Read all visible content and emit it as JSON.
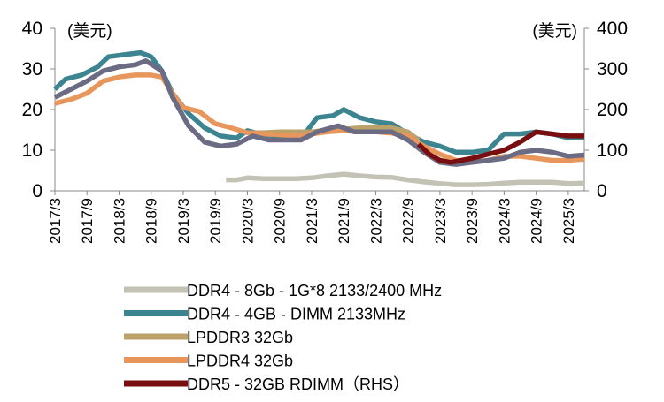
{
  "chart_data": {
    "type": "line",
    "left_axis": {
      "unit": "(美元)",
      "ylim": [
        0,
        40
      ],
      "ticks": [
        "0",
        "10",
        "20",
        "30",
        "40"
      ]
    },
    "right_axis": {
      "unit": "(美元)",
      "ylim": [
        0,
        400
      ],
      "ticks": [
        "0",
        "100",
        "200",
        "300",
        "400"
      ]
    },
    "x_range": [
      "2017-03",
      "2025-06"
    ],
    "x_ticks": [
      {
        "date": "2017-03",
        "label": "2017/3"
      },
      {
        "date": "2017-09",
        "label": "2017/9"
      },
      {
        "date": "2018-03",
        "label": "2018/3"
      },
      {
        "date": "2018-09",
        "label": "2018/9"
      },
      {
        "date": "2019-03",
        "label": "2019/3"
      },
      {
        "date": "2019-09",
        "label": "2019/9"
      },
      {
        "date": "2020-03",
        "label": "2020/3"
      },
      {
        "date": "2020-09",
        "label": "2020/9"
      },
      {
        "date": "2021-03",
        "label": "2021/3"
      },
      {
        "date": "2021-09",
        "label": "2021/9"
      },
      {
        "date": "2022-03",
        "label": "2022/3"
      },
      {
        "date": "2022-09",
        "label": "2022/9"
      },
      {
        "date": "2023-03",
        "label": "2023/3"
      },
      {
        "date": "2023-09",
        "label": "2023/9"
      },
      {
        "date": "2024-03",
        "label": "2024/3"
      },
      {
        "date": "2024-09",
        "label": "2024/9"
      },
      {
        "date": "2025-03",
        "label": "2025/3"
      }
    ],
    "series": [
      {
        "name": "DDR4 - 8Gb - 1G*8 2133/2400 MHz",
        "axis": "left",
        "color": "#c3c3b5",
        "points": [
          [
            "2019-11",
            2.7
          ],
          [
            "2020-01",
            2.7
          ],
          [
            "2020-03",
            3.2
          ],
          [
            "2020-06",
            3.0
          ],
          [
            "2020-09",
            3.0
          ],
          [
            "2020-12",
            3.0
          ],
          [
            "2021-03",
            3.2
          ],
          [
            "2021-06",
            3.7
          ],
          [
            "2021-09",
            4.1
          ],
          [
            "2021-12",
            3.7
          ],
          [
            "2022-03",
            3.4
          ],
          [
            "2022-06",
            3.3
          ],
          [
            "2022-09",
            2.7
          ],
          [
            "2022-12",
            2.2
          ],
          [
            "2023-03",
            1.8
          ],
          [
            "2023-06",
            1.5
          ],
          [
            "2023-09",
            1.5
          ],
          [
            "2023-12",
            1.6
          ],
          [
            "2024-03",
            1.9
          ],
          [
            "2024-06",
            2.1
          ],
          [
            "2024-09",
            2.1
          ],
          [
            "2024-12",
            2.1
          ],
          [
            "2025-03",
            1.8
          ],
          [
            "2025-06",
            1.9
          ]
        ]
      },
      {
        "name": "DDR4 - 4GB - DIMM 2133MHz",
        "axis": "left",
        "color": "#3c8490",
        "points": [
          [
            "2017-03",
            25.0
          ],
          [
            "2017-05",
            27.5
          ],
          [
            "2017-08",
            28.5
          ],
          [
            "2017-11",
            30.5
          ],
          [
            "2018-01",
            33.0
          ],
          [
            "2018-04",
            33.5
          ],
          [
            "2018-07",
            34.0
          ],
          [
            "2018-09",
            33.0
          ],
          [
            "2018-11",
            29.5
          ],
          [
            "2019-01",
            24.0
          ],
          [
            "2019-04",
            19.0
          ],
          [
            "2019-07",
            15.5
          ],
          [
            "2019-10",
            13.5
          ],
          [
            "2020-01",
            13.0
          ],
          [
            "2020-03",
            14.8
          ],
          [
            "2020-06",
            13.8
          ],
          [
            "2020-09",
            13.5
          ],
          [
            "2020-12",
            13.5
          ],
          [
            "2021-02",
            14.5
          ],
          [
            "2021-04",
            18.0
          ],
          [
            "2021-07",
            18.5
          ],
          [
            "2021-09",
            20.0
          ],
          [
            "2021-12",
            18.0
          ],
          [
            "2022-03",
            17.0
          ],
          [
            "2022-06",
            16.5
          ],
          [
            "2022-09",
            14.0
          ],
          [
            "2022-12",
            12.0
          ],
          [
            "2023-03",
            11.0
          ],
          [
            "2023-06",
            9.5
          ],
          [
            "2023-09",
            9.5
          ],
          [
            "2023-12",
            10.0
          ],
          [
            "2024-03",
            14.0
          ],
          [
            "2024-06",
            14.0
          ],
          [
            "2024-09",
            14.5
          ],
          [
            "2024-12",
            14.0
          ],
          [
            "2025-03",
            13.0
          ],
          [
            "2025-06",
            13.2
          ]
        ]
      },
      {
        "name": "LPDDR3 32Gb",
        "axis": "left",
        "color": "#bba16a",
        "points": [
          [
            "2020-03",
            14.3
          ],
          [
            "2020-06",
            14.3
          ],
          [
            "2020-09",
            14.5
          ],
          [
            "2020-12",
            14.5
          ],
          [
            "2021-03",
            14.5
          ],
          [
            "2021-06",
            15.0
          ],
          [
            "2021-09",
            15.2
          ],
          [
            "2021-12",
            15.5
          ],
          [
            "2022-03",
            15.5
          ],
          [
            "2022-06",
            15.5
          ],
          [
            "2022-09",
            14.5
          ],
          [
            "2022-11",
            12.5
          ]
        ]
      },
      {
        "name": "LPDDR4 32Gb",
        "axis": "left",
        "color": "#e8965c",
        "points": [
          [
            "2017-03",
            21.5
          ],
          [
            "2017-06",
            22.5
          ],
          [
            "2017-09",
            24.0
          ],
          [
            "2017-12",
            27.0
          ],
          [
            "2018-03",
            28.0
          ],
          [
            "2018-06",
            28.5
          ],
          [
            "2018-09",
            28.5
          ],
          [
            "2018-11",
            28.0
          ],
          [
            "2019-01",
            24.0
          ],
          [
            "2019-03",
            20.5
          ],
          [
            "2019-06",
            19.5
          ],
          [
            "2019-09",
            16.5
          ],
          [
            "2019-12",
            15.5
          ],
          [
            "2020-03",
            14.3
          ],
          [
            "2020-06",
            14.0
          ],
          [
            "2020-09",
            13.8
          ],
          [
            "2020-12",
            13.5
          ],
          [
            "2021-03",
            14.0
          ],
          [
            "2021-06",
            14.5
          ],
          [
            "2021-09",
            14.8
          ],
          [
            "2021-12",
            14.5
          ],
          [
            "2022-03",
            14.5
          ],
          [
            "2022-06",
            14.2
          ],
          [
            "2022-09",
            13.5
          ],
          [
            "2022-12",
            11.0
          ],
          [
            "2023-03",
            9.0
          ],
          [
            "2023-06",
            7.5
          ],
          [
            "2023-09",
            7.0
          ],
          [
            "2023-12",
            7.5
          ],
          [
            "2024-03",
            8.5
          ],
          [
            "2024-06",
            8.5
          ],
          [
            "2024-09",
            8.0
          ],
          [
            "2024-12",
            7.5
          ],
          [
            "2025-03",
            7.5
          ],
          [
            "2025-06",
            7.8
          ]
        ]
      },
      {
        "name": "",
        "axis": "left",
        "color": "#6b6b84",
        "points": [
          [
            "2017-03",
            23.0
          ],
          [
            "2017-06",
            25.0
          ],
          [
            "2017-09",
            27.0
          ],
          [
            "2017-12",
            29.5
          ],
          [
            "2018-03",
            30.5
          ],
          [
            "2018-06",
            31.0
          ],
          [
            "2018-08",
            32.0
          ],
          [
            "2018-11",
            29.5
          ],
          [
            "2019-01",
            23.0
          ],
          [
            "2019-04",
            16.0
          ],
          [
            "2019-07",
            12.0
          ],
          [
            "2019-10",
            11.0
          ],
          [
            "2020-01",
            11.5
          ],
          [
            "2020-04",
            13.5
          ],
          [
            "2020-07",
            12.5
          ],
          [
            "2020-10",
            12.5
          ],
          [
            "2021-01",
            12.5
          ],
          [
            "2021-04",
            14.5
          ],
          [
            "2021-08",
            16.0
          ],
          [
            "2021-11",
            14.5
          ],
          [
            "2022-03",
            14.5
          ],
          [
            "2022-06",
            14.5
          ],
          [
            "2022-09",
            12.5
          ],
          [
            "2022-12",
            9.5
          ],
          [
            "2023-03",
            7.0
          ],
          [
            "2023-06",
            6.5
          ],
          [
            "2023-09",
            7.0
          ],
          [
            "2023-12",
            7.5
          ],
          [
            "2024-03",
            8.0
          ],
          [
            "2024-06",
            9.5
          ],
          [
            "2024-09",
            10.0
          ],
          [
            "2024-12",
            9.5
          ],
          [
            "2025-03",
            8.5
          ],
          [
            "2025-06",
            8.8
          ]
        ]
      },
      {
        "name": "DDR5 - 32GB RDIMM（RHS）",
        "axis": "right",
        "color": "#790e10",
        "points": [
          [
            "2022-11",
            115
          ],
          [
            "2023-01",
            90
          ],
          [
            "2023-03",
            75
          ],
          [
            "2023-05",
            70
          ],
          [
            "2023-07",
            75
          ],
          [
            "2023-09",
            80
          ],
          [
            "2023-12",
            90
          ],
          [
            "2024-03",
            100
          ],
          [
            "2024-06",
            120
          ],
          [
            "2024-09",
            145
          ],
          [
            "2024-12",
            140
          ],
          [
            "2025-03",
            135
          ],
          [
            "2025-06",
            135
          ]
        ]
      }
    ],
    "legend": {
      "position": "bottom",
      "entries": [
        {
          "label": "DDR4 - 8Gb - 1G*8 2133/2400 MHz",
          "color": "#c3c3b5"
        },
        {
          "label": "DDR4 - 4GB - DIMM 2133MHz",
          "color": "#3c8490"
        },
        {
          "label": "LPDDR3 32Gb",
          "color": "#bba16a"
        },
        {
          "label": "LPDDR4 32Gb",
          "color": "#e8965c"
        },
        {
          "label": "DDR5 - 32GB RDIMM（RHS）",
          "color": "#790e10"
        }
      ]
    },
    "grid": false
  }
}
